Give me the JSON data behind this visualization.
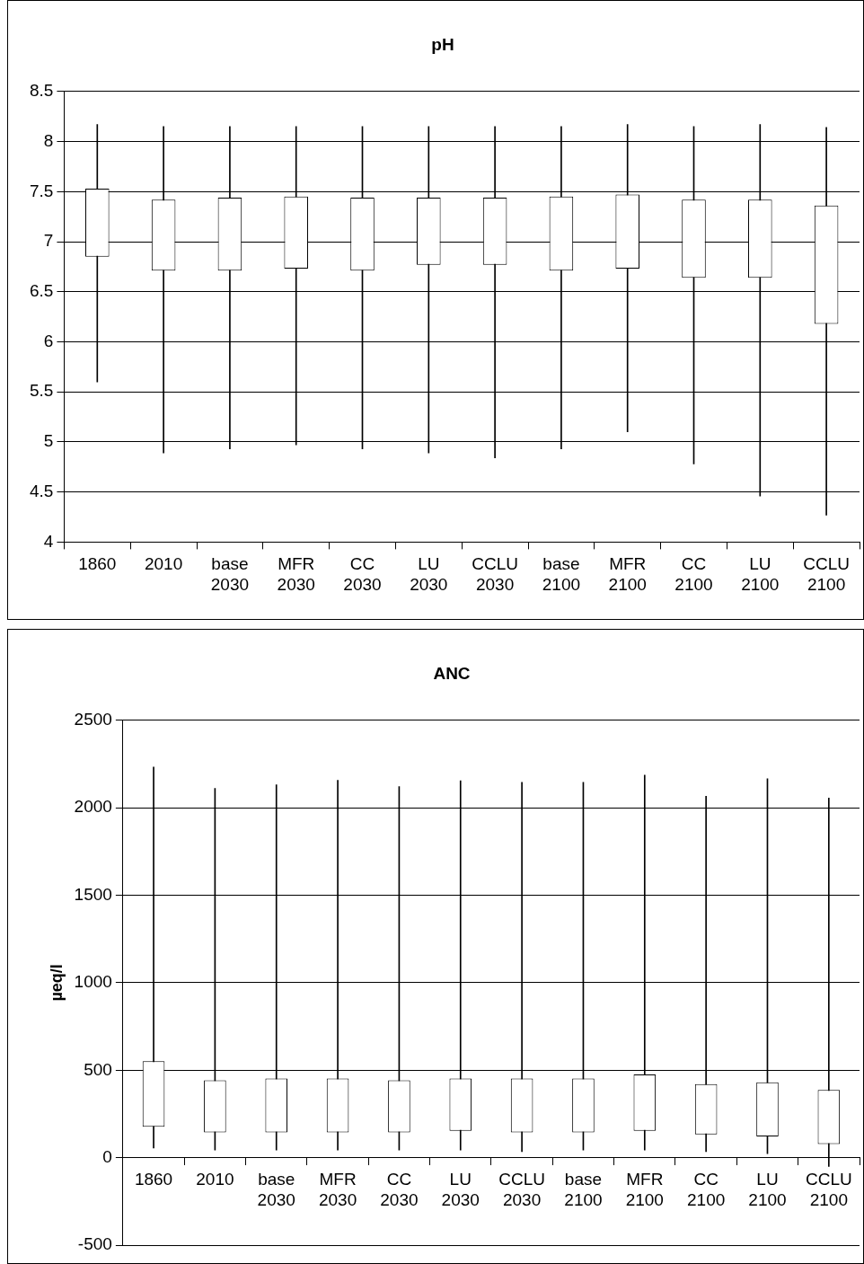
{
  "chart_data": [
    {
      "type": "candlestick",
      "title": "pH",
      "categories": [
        "1860",
        "2010",
        "base 2030",
        "MFR 2030",
        "CC 2030",
        "LU 2030",
        "CCLU 2030",
        "base 2100",
        "MFR 2100",
        "CC 2100",
        "LU 2100",
        "CCLU 2100"
      ],
      "ohlc": [
        [
          6.85,
          8.17,
          5.6,
          7.53
        ],
        [
          6.71,
          8.15,
          4.89,
          7.42
        ],
        [
          6.71,
          8.15,
          4.93,
          7.44
        ],
        [
          6.73,
          8.15,
          4.97,
          7.45
        ],
        [
          6.71,
          8.15,
          4.93,
          7.44
        ],
        [
          6.77,
          8.15,
          4.89,
          7.44
        ],
        [
          6.77,
          8.15,
          4.84,
          7.44
        ],
        [
          6.71,
          8.15,
          4.93,
          7.45
        ],
        [
          6.73,
          8.17,
          5.1,
          7.47
        ],
        [
          6.64,
          8.15,
          4.78,
          7.42
        ],
        [
          6.64,
          8.17,
          4.46,
          7.42
        ],
        [
          6.18,
          8.14,
          4.27,
          7.36
        ]
      ],
      "ylim": [
        4,
        8.5
      ],
      "yticks": [
        4,
        4.5,
        5,
        5.5,
        6,
        6.5,
        7,
        7.5,
        8,
        8.5
      ],
      "grid": "y"
    },
    {
      "type": "candlestick",
      "title": "ANC",
      "ylabel": "µeq/l",
      "categories": [
        "1860",
        "2010",
        "base 2030",
        "MFR 2030",
        "CC 2030",
        "LU 2030",
        "CCLU 2030",
        "base 2100",
        "MFR 2100",
        "CC 2100",
        "LU 2100",
        "CCLU 2100"
      ],
      "ohlc": [
        [
          176,
          2233,
          55,
          552
        ],
        [
          144,
          2111,
          44,
          442
        ],
        [
          144,
          2132,
          44,
          453
        ],
        [
          144,
          2157,
          44,
          453
        ],
        [
          144,
          2121,
          44,
          442
        ],
        [
          154,
          2155,
          44,
          453
        ],
        [
          144,
          2145,
          34,
          453
        ],
        [
          144,
          2145,
          44,
          453
        ],
        [
          154,
          2187,
          44,
          476
        ],
        [
          133,
          2066,
          34,
          421
        ],
        [
          121,
          2166,
          23,
          431
        ],
        [
          78,
          2056,
          -50,
          387
        ]
      ],
      "ylim": [
        -500,
        2500
      ],
      "yticks": [
        -500,
        0,
        500,
        1000,
        1500,
        2000,
        2500
      ],
      "grid": "y"
    }
  ]
}
